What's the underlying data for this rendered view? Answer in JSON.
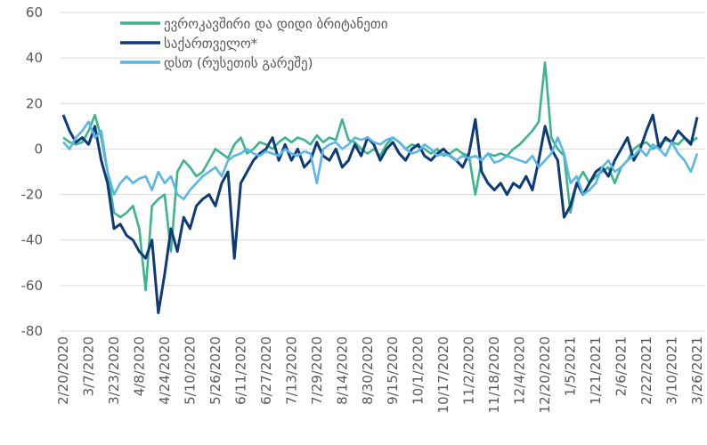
{
  "chart_data": {
    "type": "line",
    "categories": [
      "2/20/2020",
      null,
      null,
      null,
      "3/7/2020",
      null,
      null,
      null,
      "3/23/2020",
      null,
      null,
      null,
      "4/8/2020",
      null,
      null,
      null,
      "4/24/2020",
      null,
      null,
      null,
      "5/10/2020",
      null,
      null,
      null,
      "5/26/2020",
      null,
      null,
      null,
      "6/11/2020",
      null,
      null,
      null,
      "6/27/2020",
      null,
      null,
      null,
      "7/13/2020",
      null,
      null,
      null,
      "7/29/2020",
      null,
      null,
      null,
      "8/14/2020",
      null,
      null,
      null,
      "8/30/2020",
      null,
      null,
      null,
      "9/15/2020",
      null,
      null,
      null,
      "10/1/2020",
      null,
      null,
      null,
      "10/17/2020",
      null,
      null,
      null,
      "11/2/2020",
      null,
      null,
      null,
      "11/18/2020",
      null,
      null,
      null,
      "12/4/2020",
      null,
      null,
      null,
      "12/20/2020",
      null,
      null,
      null,
      "1/5/2021",
      null,
      null,
      null,
      "1/21/2021",
      null,
      null,
      null,
      "2/6/2021",
      null,
      null,
      null,
      "2/22/2021",
      null,
      null,
      null,
      "3/10/2021",
      null,
      null,
      null,
      "3/26/2021"
    ],
    "series": [
      {
        "name": "ევროკავშირი და დიდი ბრიტანეთი",
        "color": "#3db58a",
        "values": [
          5,
          3,
          2,
          3,
          8,
          15,
          5,
          -10,
          -28,
          -30,
          -28,
          -25,
          -35,
          -62,
          -25,
          -22,
          -20,
          -45,
          -10,
          -5,
          -8,
          -12,
          -10,
          -5,
          0,
          -2,
          -4,
          2,
          5,
          -2,
          0,
          3,
          2,
          0,
          3,
          5,
          3,
          5,
          4,
          2,
          6,
          3,
          5,
          4,
          13,
          4,
          3,
          0,
          -2,
          0,
          -3,
          2,
          5,
          3,
          0,
          2,
          1,
          0,
          -2,
          0,
          -3,
          -2,
          0,
          -2,
          -3,
          -20,
          -5,
          -2,
          -3,
          -2,
          -3,
          0,
          2,
          5,
          8,
          12,
          38,
          5,
          0,
          -3,
          -28,
          -15,
          -10,
          -15,
          -12,
          -10,
          -8,
          -15,
          -8,
          -5,
          0,
          2,
          3,
          0,
          2,
          4,
          3,
          2,
          5,
          3,
          5
        ]
      },
      {
        "name": "საქართველო*",
        "color": "#0e3a78",
        "values": [
          15,
          8,
          3,
          5,
          2,
          10,
          -5,
          -15,
          -35,
          -33,
          -38,
          -40,
          -45,
          -48,
          -40,
          -72,
          -55,
          -35,
          -45,
          -30,
          -35,
          -25,
          -22,
          -20,
          -25,
          -15,
          -10,
          -48,
          -15,
          -10,
          -5,
          -2,
          0,
          5,
          -5,
          2,
          -5,
          0,
          -8,
          -5,
          3,
          -3,
          -5,
          0,
          -8,
          -5,
          2,
          -3,
          5,
          2,
          -5,
          0,
          3,
          -2,
          -5,
          0,
          2,
          -3,
          -5,
          -2,
          0,
          -3,
          -5,
          -8,
          -2,
          13,
          -10,
          -15,
          -18,
          -15,
          -20,
          -15,
          -17,
          -12,
          -18,
          -5,
          10,
          0,
          -5,
          -30,
          -25,
          -15,
          -20,
          -15,
          -10,
          -8,
          -12,
          -5,
          0,
          5,
          -5,
          0,
          8,
          15,
          0,
          5,
          3,
          8,
          5,
          2,
          14
        ]
      },
      {
        "name": "დსთ (რუსეთის გარეშე)",
        "color": "#5ab6e6",
        "values": [
          3,
          0,
          5,
          8,
          12,
          5,
          8,
          -10,
          -20,
          -15,
          -12,
          -15,
          -13,
          -12,
          -18,
          -10,
          -15,
          -12,
          -20,
          -22,
          -18,
          -15,
          -12,
          -10,
          -8,
          -12,
          -5,
          -3,
          -2,
          0,
          -2,
          -3,
          -1,
          -2,
          -3,
          0,
          -2,
          -3,
          -1,
          -2,
          -15,
          0,
          2,
          3,
          0,
          2,
          5,
          4,
          5,
          3,
          2,
          4,
          5,
          3,
          0,
          -2,
          -1,
          2,
          0,
          -3,
          -2,
          -3,
          -5,
          -3,
          -4,
          -3,
          -5,
          -2,
          -6,
          -5,
          -3,
          -4,
          -5,
          -6,
          -3,
          -8,
          -5,
          -2,
          5,
          -2,
          -15,
          -12,
          -20,
          -18,
          -15,
          -8,
          -5,
          -10,
          -8,
          -5,
          -3,
          0,
          -3,
          2,
          0,
          -3,
          3,
          -2,
          -5,
          -10,
          -2
        ]
      }
    ],
    "ylim": [
      -80,
      60
    ],
    "yticks": [
      -80,
      -60,
      -40,
      -20,
      0,
      20,
      40,
      60
    ],
    "grid": true
  }
}
